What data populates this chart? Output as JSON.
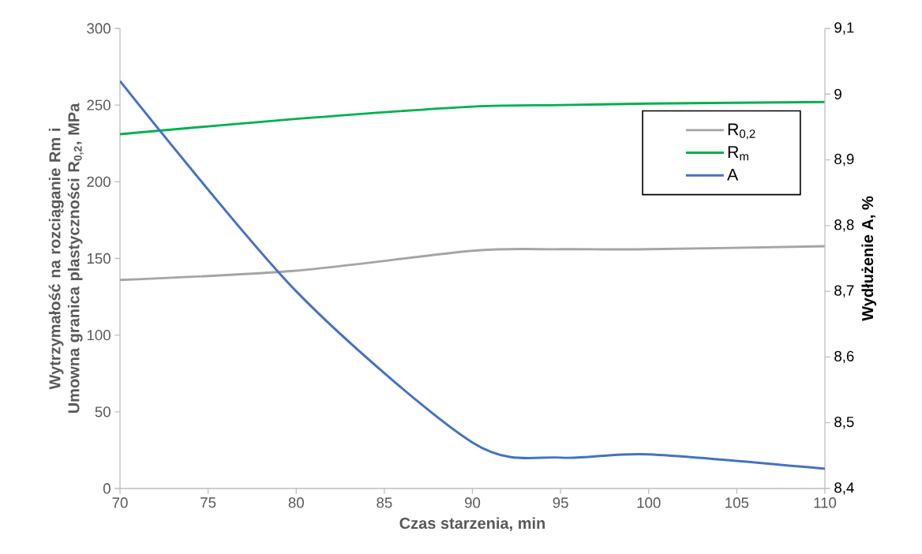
{
  "chart_data": {
    "type": "line",
    "xlabel": "Czas starzenia, min",
    "ylabel": "Wytrzymałość na rozciąganie Rm i Umowna granica plastyczności R$_{0,2}$, MPa",
    "y2label": "Wydłużenie A, %",
    "x": [
      70,
      80,
      90,
      95,
      100,
      110
    ],
    "series": [
      {
        "name": "R$_{0,2}$",
        "color": "#a5a5a5",
        "values": [
          136,
          142,
          155,
          156,
          156,
          158
        ]
      },
      {
        "name": "R$_{m}$",
        "color": "#00b050",
        "values": [
          231,
          241,
          249,
          250,
          251,
          252
        ]
      },
      {
        "name": "A",
        "color": "#4472c4",
        "axis": "y2",
        "values": [
          9.02,
          8.7,
          8.47,
          8.447,
          8.452,
          8.43
        ]
      }
    ],
    "xlim": [
      70,
      110
    ],
    "xticks": [
      70,
      75,
      80,
      85,
      90,
      95,
      100,
      105,
      110
    ],
    "ylim": [
      0,
      300
    ],
    "yticks": [
      0,
      50,
      100,
      150,
      200,
      250,
      300
    ],
    "y2lim": [
      8.4,
      9.1
    ],
    "y2ticks": [
      {
        "value": 8.4,
        "label": "8,4"
      },
      {
        "value": 8.5,
        "label": "8,5"
      },
      {
        "value": 8.6,
        "label": "8,6"
      },
      {
        "value": 8.7,
        "label": "8,7"
      },
      {
        "value": 8.8,
        "label": "8,8"
      },
      {
        "value": 8.9,
        "label": "8,9"
      },
      9,
      {
        "value": 9.1,
        "label": "9,1"
      }
    ],
    "legend": "top right"
  }
}
